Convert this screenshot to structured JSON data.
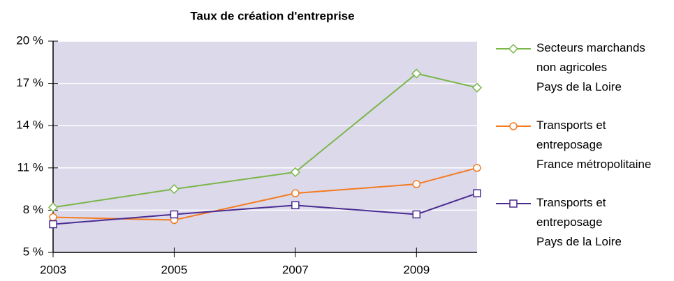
{
  "chart_data": {
    "type": "line",
    "title": "Taux de création d'entreprise",
    "x": [
      2003,
      2005,
      2007,
      2009,
      2010
    ],
    "series": [
      {
        "name": "Secteurs marchands\nnon agricoles\nPays de la Loire",
        "color": "#7ab648",
        "marker": "diamond",
        "values": [
          8.2,
          9.5,
          10.7,
          17.7,
          16.7
        ]
      },
      {
        "name": "Transports et\nentreposage\nFrance métropolitaine",
        "color": "#f47b20",
        "marker": "circle",
        "values": [
          7.5,
          7.3,
          9.2,
          9.85,
          11.0
        ]
      },
      {
        "name": "Transports et\nentreposage\nPays de la Loire",
        "color": "#4b2c91",
        "marker": "square",
        "values": [
          7.0,
          7.7,
          8.35,
          7.7,
          9.2
        ]
      }
    ],
    "xlim": [
      2003,
      2010
    ],
    "xticks": [
      2003,
      2005,
      2007,
      2009
    ],
    "ylim": [
      5,
      20
    ],
    "yticks": [
      {
        "value": 5,
        "label": "5 %"
      },
      {
        "value": 8,
        "label": "8 %"
      },
      {
        "value": 11,
        "label": "11 %"
      },
      {
        "value": 14,
        "label": "14 %"
      },
      {
        "value": 17,
        "label": "17 %"
      },
      {
        "value": 20,
        "label": "20 %"
      }
    ],
    "grid": true,
    "plot_background": "#dcd9eb",
    "legend": "right"
  }
}
